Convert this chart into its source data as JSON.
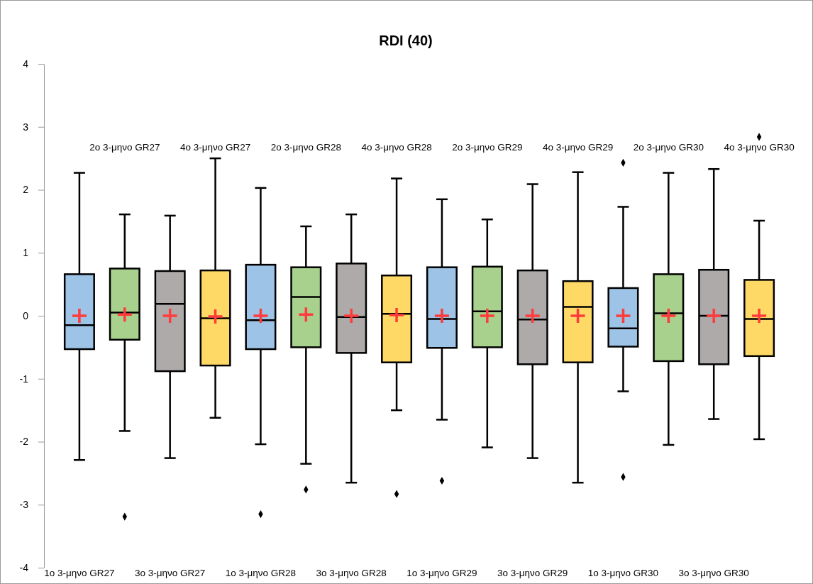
{
  "chart_data": {
    "type": "box",
    "title": "RDI (40)",
    "categories": [
      "1ο 3-μηνο GR27",
      "2ο 3-μηνο GR27",
      "3ο 3-μηνο GR27",
      "4ο 3-μηνο GR27",
      "1ο 3-μηνο GR28",
      "2ο 3-μηνο GR28",
      "3ο 3-μηνο GR28",
      "4ο 3-μηνο GR28",
      "1ο 3-μηνο GR29",
      "2ο 3-μηνο GR29",
      "3ο 3-μηνο GR29",
      "4ο 3-μηνο GR29",
      "1ο 3-μηνο GR30",
      "2ο 3-μηνο GR30",
      "3ο 3-μηνο GR30",
      "4ο 3-μηνο GR30"
    ],
    "colors": [
      "#9dc3e6",
      "#a9d18e",
      "#aeaaaa",
      "#ffd966",
      "#9dc3e6",
      "#a9d18e",
      "#aeaaaa",
      "#ffd966",
      "#9dc3e6",
      "#a9d18e",
      "#aeaaaa",
      "#ffd966",
      "#9dc3e6",
      "#a9d18e",
      "#aeaaaa",
      "#ffd966"
    ],
    "boxes": [
      {
        "low": -2.29,
        "q1": -0.53,
        "median": -0.15,
        "q3": 0.66,
        "high": 2.27,
        "mean": 0
      },
      {
        "low": -1.83,
        "q1": -0.38,
        "median": 0.05,
        "q3": 0.75,
        "high": 1.61,
        "mean": 0.02,
        "outliers": [
          -3.19
        ]
      },
      {
        "low": -2.26,
        "q1": -0.88,
        "median": 0.19,
        "q3": 0.71,
        "high": 1.59,
        "mean": 0
      },
      {
        "low": -1.62,
        "q1": -0.79,
        "median": -0.04,
        "q3": 0.72,
        "high": 2.5,
        "mean": -0.01
      },
      {
        "low": -2.04,
        "q1": -0.53,
        "median": -0.07,
        "q3": 0.81,
        "high": 2.03,
        "mean": 0,
        "outliers": [
          -3.15
        ]
      },
      {
        "low": -2.35,
        "q1": -0.5,
        "median": 0.3,
        "q3": 0.77,
        "high": 1.42,
        "mean": 0.02,
        "outliers": [
          -2.76
        ]
      },
      {
        "low": -2.65,
        "q1": -0.59,
        "median": -0.02,
        "q3": 0.83,
        "high": 1.61,
        "mean": 0
      },
      {
        "low": -1.5,
        "q1": -0.74,
        "median": 0.03,
        "q3": 0.64,
        "high": 2.18,
        "mean": 0.01,
        "outliers": [
          -2.83
        ]
      },
      {
        "low": -1.65,
        "q1": -0.51,
        "median": -0.05,
        "q3": 0.77,
        "high": 1.85,
        "mean": 0,
        "outliers": [
          -2.62
        ]
      },
      {
        "low": -2.09,
        "q1": -0.5,
        "median": 0.07,
        "q3": 0.78,
        "high": 1.53,
        "mean": 0
      },
      {
        "low": -2.26,
        "q1": -0.77,
        "median": -0.06,
        "q3": 0.72,
        "high": 2.09,
        "mean": 0
      },
      {
        "low": -2.65,
        "q1": -0.74,
        "median": 0.14,
        "q3": 0.55,
        "high": 2.28,
        "mean": 0
      },
      {
        "low": -1.2,
        "q1": -0.49,
        "median": -0.2,
        "q3": 0.44,
        "high": 1.73,
        "mean": 0,
        "outliers": [
          2.43,
          -2.56
        ]
      },
      {
        "low": -2.05,
        "q1": -0.72,
        "median": 0.04,
        "q3": 0.66,
        "high": 2.27,
        "mean": 0
      },
      {
        "low": -1.64,
        "q1": -0.77,
        "median": 0,
        "q3": 0.73,
        "high": 2.33,
        "mean": 0
      },
      {
        "low": -1.96,
        "q1": -0.64,
        "median": -0.05,
        "q3": 0.57,
        "high": 1.51,
        "mean": 0,
        "outliers": [
          2.84
        ]
      }
    ],
    "ylim": [
      -4,
      4
    ],
    "yticks": [
      -4,
      -3,
      -2,
      -1,
      0,
      1,
      2,
      3,
      4
    ]
  }
}
